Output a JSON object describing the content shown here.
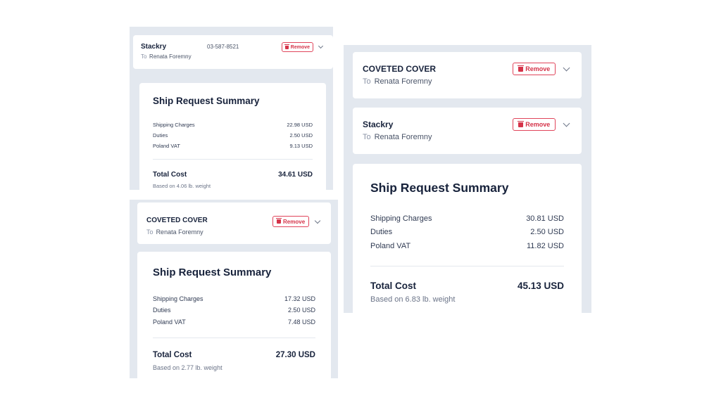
{
  "common": {
    "remove_label": "Remove",
    "to_label": "To",
    "summary_title": "Ship Request Summary",
    "shipping_label": "Shipping Charges",
    "duties_label": "Duties",
    "vat_label": "Poland VAT",
    "total_label": "Total Cost",
    "colors": {
      "panel_bg": "#e3e8ef",
      "remove_red": "#d53349",
      "text_dark": "#17223b"
    }
  },
  "icons": {
    "remove": "trash-icon",
    "expand": "chevron-down-icon"
  },
  "panel_a": {
    "shipment": {
      "name": "Stackry",
      "phone": "03-587-8521",
      "recipient": "Renata Foremny"
    },
    "summary": {
      "shipping": "22.98 USD",
      "duties": "2.50 USD",
      "vat": "9.13 USD",
      "total": "34.61 USD",
      "weight_note": "Based on 4.06 lb. weight"
    }
  },
  "panel_b": {
    "shipment": {
      "name": "COVETED COVER",
      "recipient": "Renata Foremny"
    },
    "summary": {
      "shipping": "17.32 USD",
      "duties": "2.50 USD",
      "vat": "7.48 USD",
      "total": "27.30 USD",
      "weight_note": "Based on 2.77 lb. weight"
    }
  },
  "panel_c": {
    "shipments": [
      {
        "name": "COVETED COVER",
        "recipient": "Renata Foremny"
      },
      {
        "name": "Stackry",
        "recipient": "Renata Foremny"
      }
    ],
    "summary": {
      "shipping": "30.81 USD",
      "duties": "2.50 USD",
      "vat": "11.82 USD",
      "total": "45.13 USD",
      "weight_note": "Based on 6.83 lb. weight"
    }
  }
}
